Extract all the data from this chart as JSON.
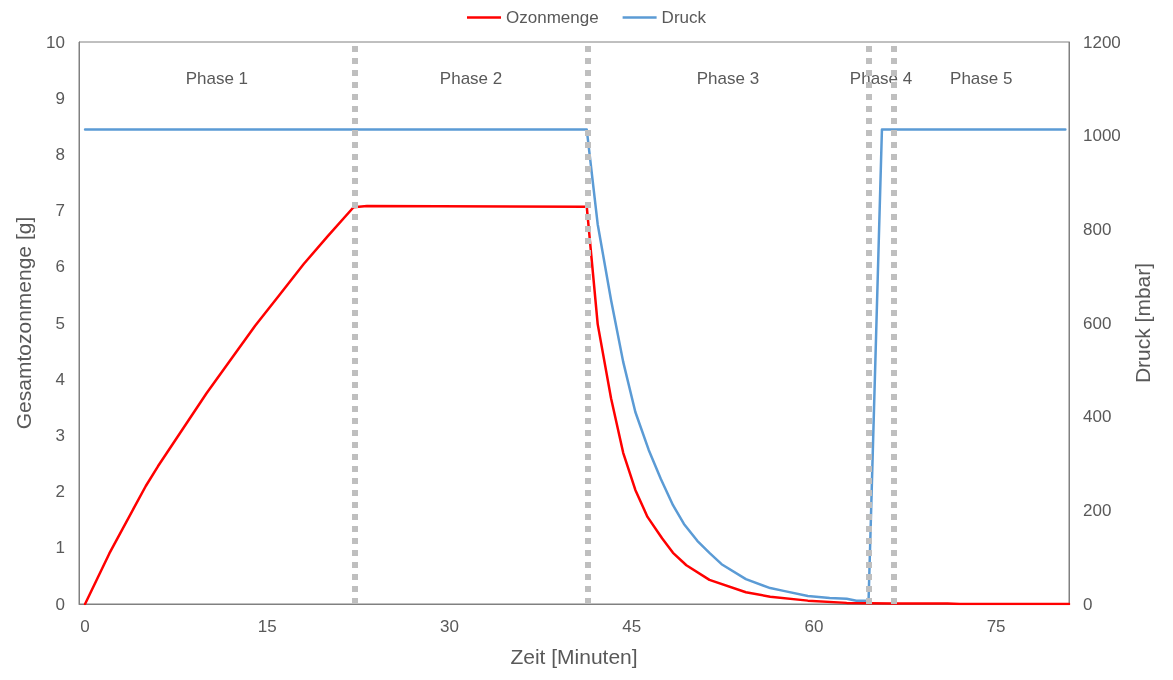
{
  "chart_data": {
    "type": "line",
    "xlabel": "Zeit [Minuten]",
    "ylabel": "Gesamtozonmenge [g]",
    "y2label": "Druck [mbar]",
    "xlim": [
      -0.5,
      81
    ],
    "xticks": [
      0,
      15,
      30,
      45,
      60,
      75
    ],
    "ylim": [
      0,
      10
    ],
    "yticks": [
      0,
      1,
      2,
      3,
      4,
      5,
      6,
      7,
      8,
      9,
      10
    ],
    "y2lim": [
      0,
      1200
    ],
    "y2ticks": [
      0,
      200,
      400,
      600,
      800,
      1000,
      1200
    ],
    "legend": "top",
    "grid": false,
    "marker": "none",
    "line_style": "solid",
    "series": [
      {
        "name": "Ozonmenge",
        "color": "#ff0000",
        "x": [
          0,
          1,
          2,
          3,
          4,
          5,
          6,
          8,
          10,
          12,
          14,
          16,
          18,
          20,
          22.1,
          23.2,
          41.3,
          42.2,
          43.3,
          44.3,
          45.3,
          46.3,
          47.5,
          48.4,
          49.5,
          51.4,
          54.4,
          56.4,
          59.5,
          62.7,
          66.4,
          71,
          72,
          81
        ],
        "values": [
          0,
          0.45,
          0.9,
          1.3,
          1.7,
          2.1,
          2.45,
          3.1,
          3.75,
          4.35,
          4.95,
          5.5,
          6.05,
          6.55,
          7.06,
          7.08,
          7.07,
          4.98,
          3.66,
          2.69,
          2.03,
          1.55,
          1.17,
          0.91,
          0.69,
          0.43,
          0.21,
          0.13,
          0.06,
          0.02,
          0.01,
          0.01,
          0,
          0
        ]
      },
      {
        "name": "Druck",
        "color": "#5b9bd5",
        "axis": "y2",
        "x": [
          0,
          41.3,
          42.2,
          43.3,
          44.3,
          45.3,
          46.4,
          47.4,
          48.4,
          49.3,
          50.4,
          51.4,
          52.4,
          54.4,
          56.4,
          57.5,
          59.5,
          61.3,
          62.7,
          63.5,
          64.5,
          65.6,
          80.7
        ],
        "values": [
          1013,
          1013,
          811,
          649,
          517,
          410,
          329,
          267,
          211,
          171,
          135,
          109,
          85,
          53,
          34,
          28,
          17,
          13,
          11,
          7,
          7,
          1013,
          1013
        ]
      }
    ],
    "ref_lines": [
      {
        "axis": "x",
        "value": 22.2,
        "color": "#bfbfbf",
        "line_style": "dotted"
      },
      {
        "axis": "x",
        "value": 41.35,
        "color": "#bfbfbf",
        "line_style": "dotted"
      },
      {
        "axis": "x",
        "value": 64.5,
        "color": "#bfbfbf",
        "line_style": "dotted"
      },
      {
        "axis": "x",
        "value": 66.55,
        "color": "#bfbfbf",
        "line_style": "dotted"
      }
    ],
    "annotations": [
      "Phase 1",
      "Phase 2",
      "Phase 3",
      "Phase 4",
      "Phase 5"
    ]
  }
}
